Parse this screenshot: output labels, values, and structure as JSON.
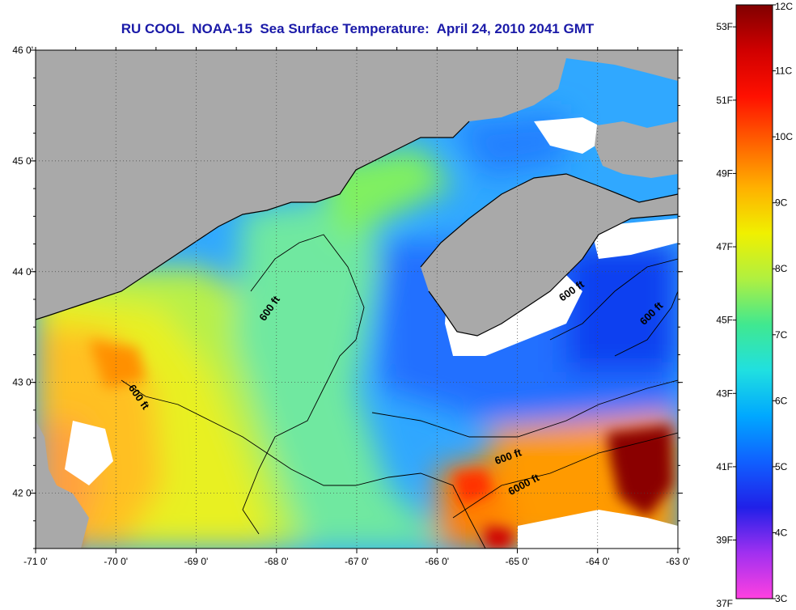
{
  "title": "RU COOL  NOAA-15  Sea Surface Temperature:  April 24, 2010 2041 GMT",
  "map": {
    "lon_range": [
      -71,
      -63
    ],
    "lat_range": [
      41.5,
      46
    ],
    "x_ticks": [
      {
        "value": -71,
        "label": "-71 0'"
      },
      {
        "value": -70,
        "label": "-70 0'"
      },
      {
        "value": -69,
        "label": "-69 0'"
      },
      {
        "value": -68,
        "label": "-68 0'"
      },
      {
        "value": -67,
        "label": "-67 0'"
      },
      {
        "value": -66,
        "label": "-66 0'"
      },
      {
        "value": -65,
        "label": "-65 0'"
      },
      {
        "value": -64,
        "label": "-64 0'"
      },
      {
        "value": -63,
        "label": "-63 0'"
      }
    ],
    "y_ticks": [
      {
        "value": 46,
        "label": "46 0'"
      },
      {
        "value": 45,
        "label": "45 0'"
      },
      {
        "value": 44,
        "label": "44 0'"
      },
      {
        "value": 43,
        "label": "43 0'"
      },
      {
        "value": 42,
        "label": "42 0'"
      }
    ],
    "gridlines": "dotted",
    "colors": {
      "land": "#a9a9a9",
      "cloud": "#ffffff",
      "contour": "#000000"
    },
    "contour_labels": [
      {
        "text": "600 ft",
        "lon": -68.05,
        "lat": 43.65,
        "angle": -55
      },
      {
        "text": "600 ft",
        "lon": -69.75,
        "lat": 42.85,
        "angle": 55
      },
      {
        "text": "600 ft",
        "lon": -65.1,
        "lat": 42.3,
        "angle": -20
      },
      {
        "text": "6000 ft",
        "lon": -64.9,
        "lat": 42.05,
        "angle": -28
      },
      {
        "text": "600 ft",
        "lon": -64.3,
        "lat": 43.8,
        "angle": -35
      },
      {
        "text": "600 ft",
        "lon": -63.3,
        "lat": 43.6,
        "angle": -45
      }
    ]
  },
  "colorbar": {
    "celsius": [
      {
        "value": 12,
        "label": "12C"
      },
      {
        "value": 11,
        "label": "11C"
      },
      {
        "value": 10,
        "label": "10C"
      },
      {
        "value": 9,
        "label": "9C"
      },
      {
        "value": 8,
        "label": "8C"
      },
      {
        "value": 7,
        "label": "7C"
      },
      {
        "value": 6,
        "label": "6C"
      },
      {
        "value": 5,
        "label": "5C"
      },
      {
        "value": 4,
        "label": "4C"
      },
      {
        "value": 3,
        "label": "3C"
      }
    ],
    "fahrenheit": [
      {
        "value": 53,
        "label": "53F"
      },
      {
        "value": 51,
        "label": "51F"
      },
      {
        "value": 49,
        "label": "49F"
      },
      {
        "value": 47,
        "label": "47F"
      },
      {
        "value": 45,
        "label": "45F"
      },
      {
        "value": 43,
        "label": "43F"
      },
      {
        "value": 41,
        "label": "41F"
      },
      {
        "value": 39,
        "label": "39F"
      },
      {
        "value": 37,
        "label": "37F"
      }
    ],
    "colors": [
      "#ff40e0",
      "#a030f0",
      "#2020e8",
      "#1060ff",
      "#00a8ff",
      "#20e0e0",
      "#40e890",
      "#b0f040",
      "#f0f000",
      "#ffb000",
      "#ff6000",
      "#ff1000",
      "#d00000",
      "#800000"
    ]
  }
}
